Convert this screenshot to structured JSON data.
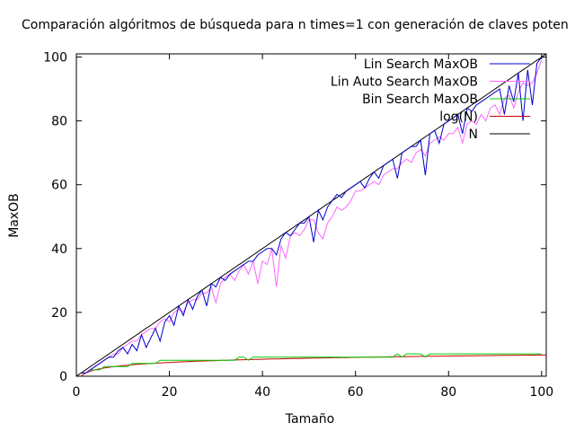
{
  "chart_data": {
    "type": "line",
    "title": "Comparación algóritmos de búsqueda para n times=1 con generación de claves poten",
    "xlabel": "Tamaño",
    "ylabel": "MaxOB",
    "xlim": [
      0,
      101
    ],
    "ylim": [
      0,
      101
    ],
    "xticks": [
      0,
      20,
      40,
      60,
      80,
      100
    ],
    "yticks": [
      0,
      20,
      40,
      60,
      80,
      100
    ],
    "grid": false,
    "legend_position": "top-right",
    "series": [
      {
        "name": "Lin Search MaxOB",
        "color": "#0000cc",
        "x": [
          1,
          2,
          3,
          4,
          5,
          6,
          7,
          8,
          9,
          10,
          11,
          12,
          13,
          14,
          15,
          16,
          17,
          18,
          19,
          20,
          21,
          22,
          23,
          24,
          25,
          26,
          27,
          28,
          29,
          30,
          31,
          32,
          33,
          34,
          35,
          36,
          37,
          38,
          39,
          40,
          41,
          42,
          43,
          44,
          45,
          46,
          47,
          48,
          49,
          50,
          51,
          52,
          53,
          54,
          55,
          56,
          57,
          58,
          59,
          60,
          61,
          62,
          63,
          64,
          65,
          66,
          67,
          68,
          69,
          70,
          71,
          72,
          73,
          74,
          75,
          76,
          77,
          78,
          79,
          80,
          81,
          82,
          83,
          84,
          85,
          86,
          87,
          88,
          89,
          90,
          91,
          92,
          93,
          94,
          95,
          96,
          97,
          98,
          99,
          100
        ],
        "y": [
          1,
          1,
          2,
          3,
          4,
          5,
          6,
          6,
          8,
          9,
          7,
          10,
          8,
          13,
          9,
          12,
          15,
          11,
          17,
          19,
          16,
          22,
          19,
          24,
          21,
          25,
          27,
          22,
          29,
          28,
          31,
          30,
          32,
          33,
          34,
          35,
          36,
          36,
          38,
          39,
          40,
          40,
          38,
          43,
          45,
          44,
          46,
          48,
          48,
          50,
          42,
          52,
          49,
          53,
          55,
          57,
          56,
          58,
          59,
          60,
          61,
          59,
          62,
          64,
          62,
          66,
          67,
          68,
          62,
          70,
          71,
          72,
          72,
          74,
          63,
          76,
          77,
          73,
          79,
          80,
          81,
          82,
          76,
          84,
          83,
          85,
          86,
          87,
          88,
          89,
          90,
          82,
          91,
          86,
          95,
          80,
          96,
          85,
          98,
          100
        ]
      },
      {
        "name": "Lin Auto Search MaxOB",
        "color": "#ff66ff",
        "x": [
          1,
          2,
          3,
          4,
          5,
          6,
          7,
          8,
          9,
          10,
          11,
          12,
          13,
          14,
          15,
          16,
          17,
          18,
          19,
          20,
          21,
          22,
          23,
          24,
          25,
          26,
          27,
          28,
          29,
          30,
          31,
          32,
          33,
          34,
          35,
          36,
          37,
          38,
          39,
          40,
          41,
          42,
          43,
          44,
          45,
          46,
          47,
          48,
          49,
          50,
          51,
          52,
          53,
          54,
          55,
          56,
          57,
          58,
          59,
          60,
          61,
          62,
          63,
          64,
          65,
          66,
          67,
          68,
          69,
          70,
          71,
          72,
          73,
          74,
          75,
          76,
          77,
          78,
          79,
          80,
          81,
          82,
          83,
          84,
          85,
          86,
          87,
          88,
          89,
          90,
          91,
          92,
          93,
          94,
          95,
          96,
          97,
          98,
          99,
          100
        ],
        "y": [
          1,
          1,
          2,
          3,
          4,
          5,
          6,
          7,
          7,
          9,
          10,
          11,
          11,
          13,
          14,
          15,
          15,
          17,
          18,
          17,
          20,
          21,
          20,
          23,
          24,
          24,
          26,
          26,
          28,
          23,
          29,
          31,
          32,
          30,
          33,
          35,
          32,
          36,
          29,
          36,
          35,
          40,
          28,
          41,
          37,
          44,
          45,
          44,
          46,
          49,
          49,
          45,
          43,
          48,
          50,
          53,
          52,
          53,
          55,
          58,
          58,
          59,
          60,
          61,
          60,
          63,
          64,
          65,
          65,
          67,
          68,
          67,
          70,
          71,
          69,
          73,
          74,
          75,
          74,
          76,
          76,
          78,
          73,
          79,
          80,
          79,
          82,
          80,
          84,
          85,
          82,
          87,
          88,
          84,
          89,
          92,
          91,
          92,
          95,
          99
        ]
      },
      {
        "name": "Bin Search MaxOB",
        "color": "#00cc00",
        "x": [
          1,
          2,
          3,
          4,
          5,
          6,
          7,
          8,
          9,
          10,
          11,
          12,
          13,
          14,
          15,
          16,
          17,
          18,
          19,
          20,
          21,
          22,
          23,
          24,
          25,
          26,
          27,
          28,
          29,
          30,
          31,
          32,
          33,
          34,
          35,
          36,
          37,
          38,
          39,
          40,
          41,
          42,
          43,
          44,
          45,
          46,
          47,
          48,
          49,
          50,
          51,
          52,
          53,
          54,
          55,
          56,
          57,
          58,
          59,
          60,
          61,
          62,
          63,
          64,
          65,
          66,
          67,
          68,
          69,
          70,
          71,
          72,
          73,
          74,
          75,
          76,
          77,
          78,
          79,
          80,
          81,
          82,
          83,
          84,
          85,
          86,
          87,
          88,
          89,
          90,
          91,
          92,
          93,
          94,
          95,
          96,
          97,
          98,
          99,
          100
        ],
        "y": [
          1,
          1,
          2,
          2,
          2,
          3,
          3,
          3,
          3,
          3,
          3,
          4,
          4,
          4,
          4,
          4,
          4,
          5,
          5,
          5,
          5,
          5,
          5,
          5,
          5,
          5,
          5,
          5,
          5,
          5,
          5,
          5,
          5,
          5,
          6,
          6,
          5,
          6,
          6,
          6,
          6,
          6,
          6,
          6,
          6,
          6,
          6,
          6,
          6,
          6,
          6,
          6,
          6,
          6,
          6,
          6,
          6,
          6,
          6,
          6,
          6,
          6,
          6,
          6,
          6,
          6,
          6,
          6,
          7,
          6,
          7,
          7,
          7,
          7,
          6,
          7,
          7,
          7,
          7,
          7,
          7,
          7,
          7,
          7,
          7,
          7,
          7,
          7,
          7,
          7,
          7,
          7,
          7,
          7,
          7,
          7,
          7,
          7,
          7,
          7
        ]
      },
      {
        "name": "log(N)",
        "color": "#cc0000",
        "function": "log2"
      },
      {
        "name": "N",
        "color": "#000000",
        "function": "identity"
      }
    ]
  }
}
